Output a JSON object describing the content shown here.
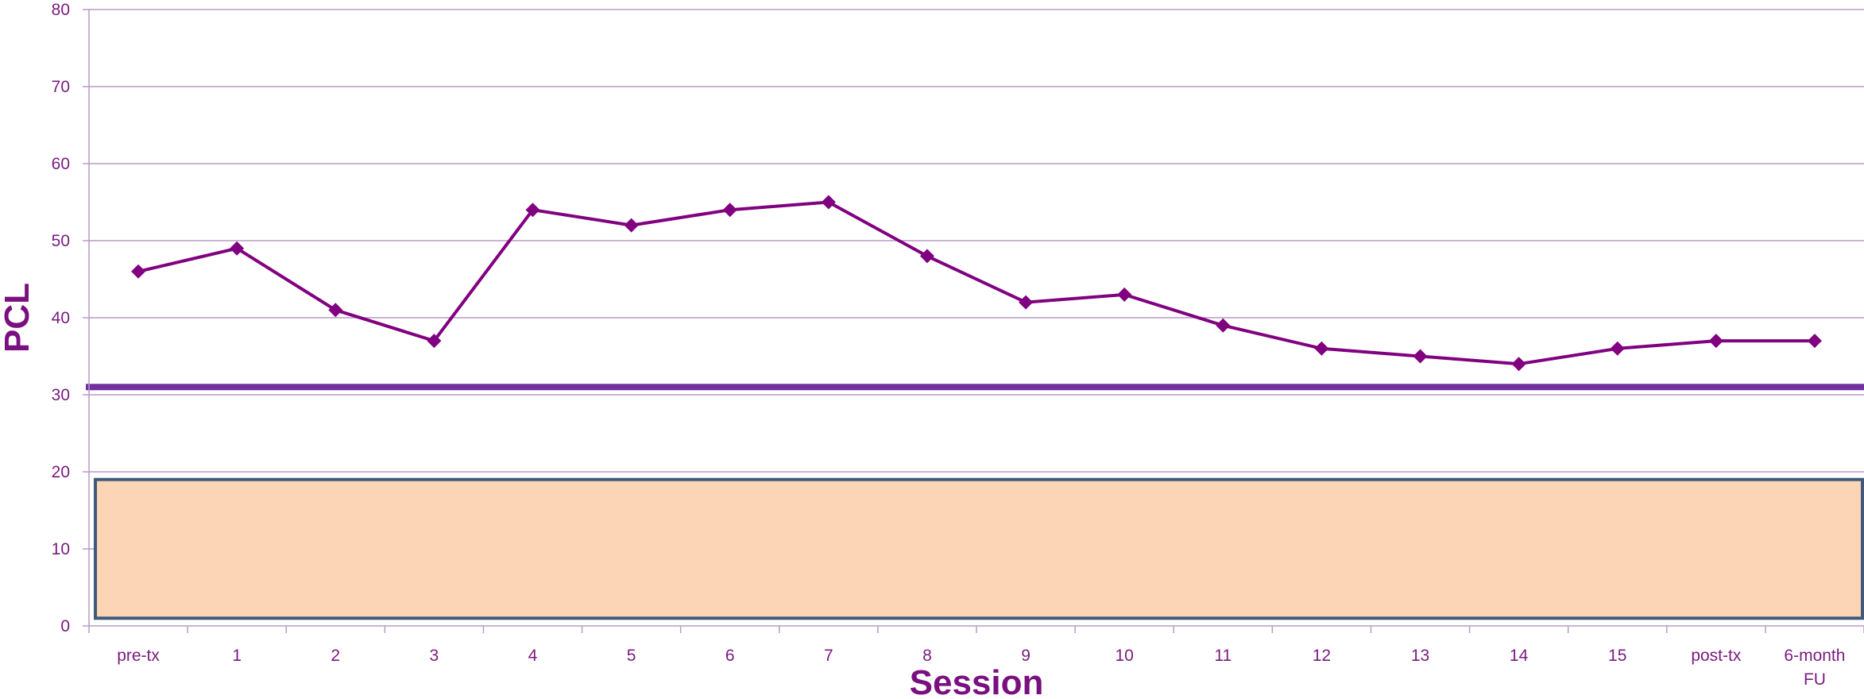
{
  "chart_data": {
    "type": "line",
    "xlabel": "Session",
    "ylabel": "PCL",
    "ylim": [
      0,
      80
    ],
    "yticks": [
      "0",
      "10",
      "20",
      "30",
      "40",
      "50",
      "60",
      "70",
      "80"
    ],
    "categories": [
      "pre-tx",
      "1",
      "2",
      "3",
      "4",
      "5",
      "6",
      "7",
      "8",
      "9",
      "10",
      "11",
      "12",
      "13",
      "14",
      "15",
      "post-tx",
      "6-month FU"
    ],
    "series": [
      {
        "values": [
          46,
          49,
          41,
          37,
          54,
          52,
          54,
          55,
          48,
          42,
          43,
          39,
          36,
          35,
          34,
          36,
          37,
          37
        ]
      }
    ],
    "reference_line": {
      "value": 31
    },
    "shaded_band": {
      "from": 1,
      "to": 19
    },
    "grid": true,
    "legend": "none",
    "colors": {
      "line": "#800080",
      "reference_line": "#7030a0",
      "band_fill": "#fbd5b5",
      "band_border": "#3f5a7a",
      "grid": "#b89bc4",
      "text": "#7a1a7f"
    }
  }
}
